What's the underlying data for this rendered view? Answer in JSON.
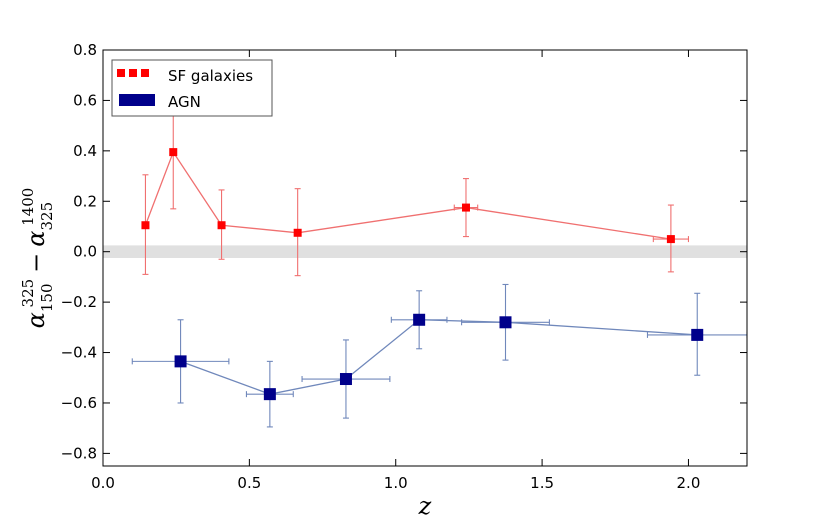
{
  "chart_data": {
    "type": "scatter",
    "title": "",
    "xlabel": "z",
    "ylabel": "α_150^325 − α_325^1400",
    "ylabel_parts": {
      "alpha": "α",
      "sub1": "150",
      "sup1": "325",
      "minus": "−",
      "sub2": "325",
      "sup2": "1400"
    },
    "xlim": [
      0.0,
      2.2
    ],
    "ylim": [
      -0.85,
      0.8
    ],
    "x_ticks": [
      0.0,
      0.5,
      1.0,
      1.5,
      2.0
    ],
    "x_tick_labels": [
      "0.0",
      "0.5",
      "1.0",
      "1.5",
      "2.0"
    ],
    "y_ticks": [
      -0.8,
      -0.6,
      -0.4,
      -0.2,
      0.0,
      0.2,
      0.4,
      0.6,
      0.8
    ],
    "y_tick_labels": [
      "−0.8",
      "−0.6",
      "−0.4",
      "−0.2",
      "0.0",
      "0.2",
      "0.4",
      "0.6",
      "0.8"
    ],
    "band": {
      "y0": -0.025,
      "y1": 0.025,
      "color": "#e0e0e0"
    },
    "legend_position": "top-left",
    "series": [
      {
        "name": "SF galaxies",
        "marker": "small-square",
        "color": "#ff0000",
        "line_color": "#f07070",
        "points": [
          {
            "x": 0.145,
            "y": 0.105,
            "xerr": 0.0,
            "yerr_low": 0.195,
            "yerr_high": 0.2
          },
          {
            "x": 0.24,
            "y": 0.395,
            "xerr": 0.0,
            "yerr_low": 0.225,
            "yerr_high": 0.215
          },
          {
            "x": 0.405,
            "y": 0.105,
            "xerr": 0.0,
            "yerr_low": 0.135,
            "yerr_high": 0.14
          },
          {
            "x": 0.665,
            "y": 0.075,
            "xerr": 0.0,
            "yerr_low": 0.17,
            "yerr_high": 0.175
          },
          {
            "x": 1.24,
            "y": 0.175,
            "xerr": 0.04,
            "yerr_low": 0.115,
            "yerr_high": 0.115
          },
          {
            "x": 1.94,
            "y": 0.05,
            "xerr": 0.06,
            "yerr_low": 0.13,
            "yerr_high": 0.135
          }
        ]
      },
      {
        "name": "AGN",
        "marker": "large-square",
        "color": "#00008b",
        "line_color": "#7088bb",
        "points": [
          {
            "x": 0.265,
            "y": -0.435,
            "xerr": 0.165,
            "yerr_low": 0.165,
            "yerr_high": 0.165
          },
          {
            "x": 0.57,
            "y": -0.565,
            "xerr": 0.08,
            "yerr_low": 0.13,
            "yerr_high": 0.13
          },
          {
            "x": 0.83,
            "y": -0.505,
            "xerr": 0.15,
            "yerr_low": 0.155,
            "yerr_high": 0.155
          },
          {
            "x": 1.08,
            "y": -0.27,
            "xerr": 0.095,
            "yerr_low": 0.115,
            "yerr_high": 0.115
          },
          {
            "x": 1.375,
            "y": -0.28,
            "xerr": 0.15,
            "yerr_low": 0.15,
            "yerr_high": 0.15
          },
          {
            "x": 2.03,
            "y": -0.33,
            "xerr": 0.17,
            "yerr_low": 0.16,
            "yerr_high": 0.165
          }
        ]
      }
    ]
  }
}
